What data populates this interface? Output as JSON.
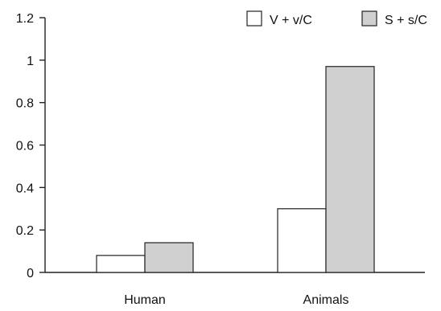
{
  "chart_data": {
    "type": "bar",
    "title": "",
    "xlabel": "",
    "ylabel": "",
    "categories": [
      "Human",
      "Animals"
    ],
    "series": [
      {
        "name": "V + v/C",
        "values": [
          0.08,
          0.3
        ],
        "color": "#ffffff"
      },
      {
        "name": "S + s/C",
        "values": [
          0.14,
          0.97
        ],
        "color": "#d0d0d0"
      }
    ],
    "ylim": [
      0,
      1.2
    ],
    "yticks": [
      0,
      0.2,
      0.4,
      0.6,
      0.8,
      1,
      1.2
    ],
    "ytick_labels": [
      "0",
      "0.2",
      "0.4",
      "0.6",
      "0.8",
      "1",
      "1.2"
    ],
    "grid": false,
    "legend_position": "top-right"
  }
}
